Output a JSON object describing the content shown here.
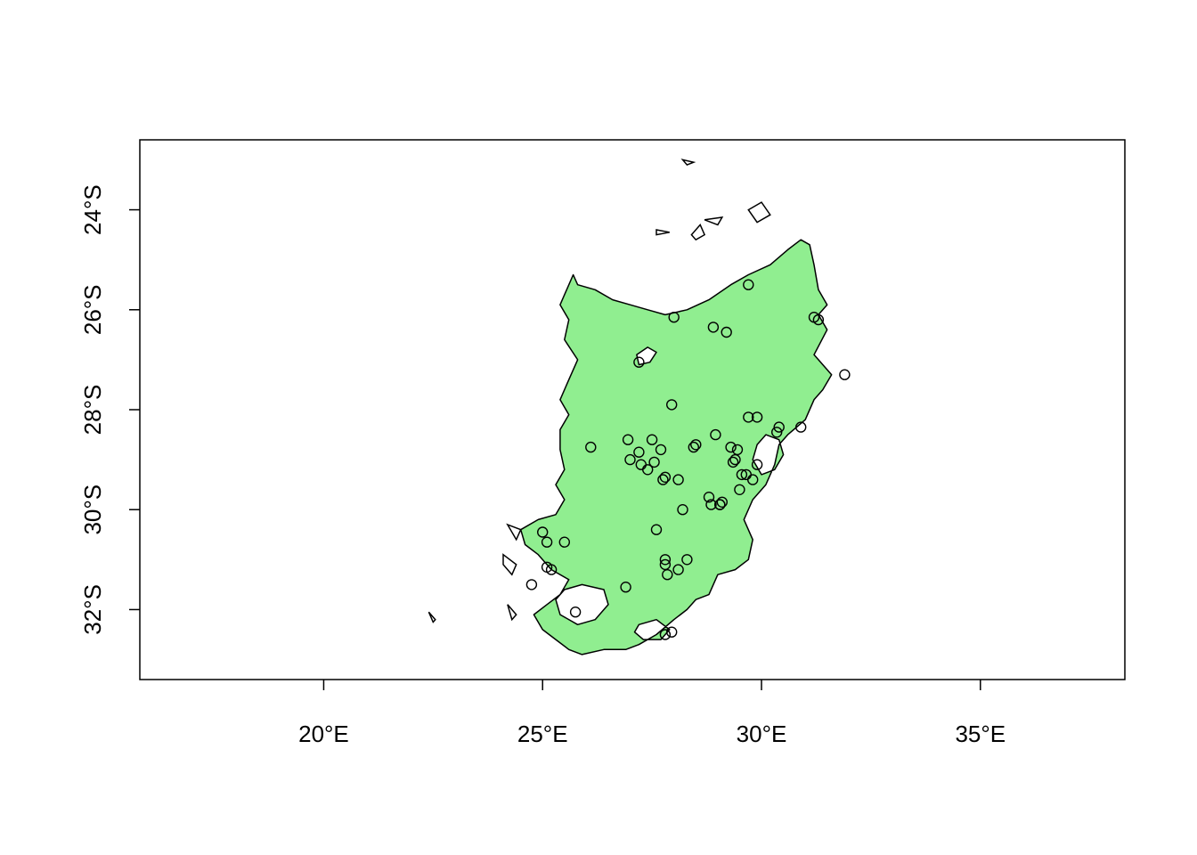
{
  "colors": {
    "background": "#ffffff",
    "region_fill": "#90ee90",
    "region_outline": "#000000",
    "point_stroke": "#000000"
  },
  "map": {
    "xlim": [
      15.8,
      38.3
    ],
    "ylim": [
      -33.4,
      -22.6
    ],
    "x_ticks": [
      {
        "value": 20,
        "label": "20°E"
      },
      {
        "value": 25,
        "label": "25°E"
      },
      {
        "value": 30,
        "label": "30°E"
      },
      {
        "value": 35,
        "label": "35°E"
      }
    ],
    "y_ticks": [
      {
        "value": -24,
        "label": "24°S"
      },
      {
        "value": -26,
        "label": "26°S"
      },
      {
        "value": -28,
        "label": "28°S"
      },
      {
        "value": -30,
        "label": "30°S"
      },
      {
        "value": -32,
        "label": "32°S"
      }
    ],
    "region": {
      "name": "",
      "outline": [
        [
          25.7,
          -25.3
        ],
        [
          25.8,
          -25.5
        ],
        [
          26.2,
          -25.6
        ],
        [
          26.6,
          -25.8
        ],
        [
          27.0,
          -25.9
        ],
        [
          27.4,
          -26.0
        ],
        [
          27.8,
          -26.1
        ],
        [
          28.3,
          -26.0
        ],
        [
          28.8,
          -25.8
        ],
        [
          29.3,
          -25.5
        ],
        [
          29.7,
          -25.3
        ],
        [
          30.2,
          -25.1
        ],
        [
          30.6,
          -24.8
        ],
        [
          30.9,
          -24.6
        ],
        [
          31.1,
          -24.7
        ],
        [
          31.2,
          -25.1
        ],
        [
          31.3,
          -25.6
        ],
        [
          31.5,
          -25.9
        ],
        [
          31.3,
          -26.1
        ],
        [
          31.5,
          -26.4
        ],
        [
          31.2,
          -26.9
        ],
        [
          31.6,
          -27.3
        ],
        [
          31.4,
          -27.6
        ],
        [
          31.2,
          -27.8
        ],
        [
          31.0,
          -28.2
        ],
        [
          30.6,
          -28.5
        ],
        [
          30.4,
          -28.7
        ],
        [
          30.3,
          -29.1
        ],
        [
          30.1,
          -29.5
        ],
        [
          29.8,
          -29.8
        ],
        [
          29.6,
          -30.2
        ],
        [
          29.8,
          -30.6
        ],
        [
          29.7,
          -31.0
        ],
        [
          29.4,
          -31.2
        ],
        [
          29.0,
          -31.3
        ],
        [
          28.8,
          -31.7
        ],
        [
          28.5,
          -31.8
        ],
        [
          28.3,
          -32.0
        ],
        [
          28.0,
          -32.2
        ],
        [
          27.6,
          -32.5
        ],
        [
          27.2,
          -32.7
        ],
        [
          26.9,
          -32.8
        ],
        [
          26.4,
          -32.8
        ],
        [
          25.9,
          -32.9
        ],
        [
          25.6,
          -32.8
        ],
        [
          25.3,
          -32.6
        ],
        [
          25.0,
          -32.4
        ],
        [
          24.8,
          -32.1
        ],
        [
          25.1,
          -31.9
        ],
        [
          25.4,
          -31.7
        ],
        [
          25.6,
          -31.4
        ],
        [
          25.2,
          -31.2
        ],
        [
          24.9,
          -30.9
        ],
        [
          24.6,
          -30.7
        ],
        [
          24.5,
          -30.4
        ],
        [
          24.9,
          -30.2
        ],
        [
          25.3,
          -30.1
        ],
        [
          25.5,
          -29.8
        ],
        [
          25.3,
          -29.5
        ],
        [
          25.5,
          -29.2
        ],
        [
          25.4,
          -28.8
        ],
        [
          25.4,
          -28.4
        ],
        [
          25.6,
          -28.1
        ],
        [
          25.4,
          -27.8
        ],
        [
          25.6,
          -27.4
        ],
        [
          25.8,
          -27.0
        ],
        [
          25.5,
          -26.6
        ],
        [
          25.6,
          -26.2
        ],
        [
          25.4,
          -25.9
        ],
        [
          25.7,
          -25.3
        ]
      ],
      "holes": [
        [
          [
            30.1,
            -28.5
          ],
          [
            30.4,
            -28.6
          ],
          [
            30.5,
            -28.9
          ],
          [
            30.3,
            -29.2
          ],
          [
            30.0,
            -29.3
          ],
          [
            29.8,
            -29.0
          ],
          [
            29.9,
            -28.7
          ],
          [
            30.1,
            -28.5
          ]
        ],
        [
          [
            25.5,
            -31.6
          ],
          [
            25.9,
            -31.5
          ],
          [
            26.4,
            -31.6
          ],
          [
            26.5,
            -31.9
          ],
          [
            26.2,
            -32.2
          ],
          [
            25.8,
            -32.3
          ],
          [
            25.4,
            -32.1
          ],
          [
            25.3,
            -31.8
          ],
          [
            25.5,
            -31.6
          ]
        ],
        [
          [
            27.2,
            -32.3
          ],
          [
            27.6,
            -32.2
          ],
          [
            27.9,
            -32.4
          ],
          [
            27.7,
            -32.6
          ],
          [
            27.3,
            -32.6
          ],
          [
            27.1,
            -32.45
          ],
          [
            27.2,
            -32.3
          ]
        ],
        [
          [
            27.15,
            -26.9
          ],
          [
            27.4,
            -26.75
          ],
          [
            27.6,
            -26.85
          ],
          [
            27.45,
            -27.05
          ],
          [
            27.2,
            -27.1
          ],
          [
            27.15,
            -26.9
          ]
        ]
      ],
      "islands": [
        [
          [
            28.2,
            -23.0
          ],
          [
            28.45,
            -23.05
          ],
          [
            28.3,
            -23.1
          ],
          [
            28.2,
            -23.0
          ]
        ],
        [
          [
            29.7,
            -24.0
          ],
          [
            30.0,
            -23.85
          ],
          [
            30.2,
            -24.1
          ],
          [
            29.9,
            -24.25
          ],
          [
            29.7,
            -24.0
          ]
        ],
        [
          [
            28.7,
            -24.2
          ],
          [
            29.1,
            -24.15
          ],
          [
            29.0,
            -24.3
          ],
          [
            28.7,
            -24.2
          ]
        ],
        [
          [
            27.6,
            -24.4
          ],
          [
            27.9,
            -24.45
          ],
          [
            27.6,
            -24.5
          ],
          [
            27.6,
            -24.4
          ]
        ],
        [
          [
            28.4,
            -24.5
          ],
          [
            28.6,
            -24.3
          ],
          [
            28.7,
            -24.5
          ],
          [
            28.5,
            -24.6
          ],
          [
            28.4,
            -24.5
          ]
        ],
        [
          [
            22.4,
            -32.05
          ],
          [
            22.55,
            -32.2
          ],
          [
            22.5,
            -32.25
          ],
          [
            22.4,
            -32.05
          ]
        ],
        [
          [
            24.2,
            -30.3
          ],
          [
            24.5,
            -30.4
          ],
          [
            24.4,
            -30.6
          ],
          [
            24.2,
            -30.3
          ]
        ],
        [
          [
            24.1,
            -30.9
          ],
          [
            24.4,
            -31.1
          ],
          [
            24.3,
            -31.3
          ],
          [
            24.1,
            -31.1
          ],
          [
            24.1,
            -30.9
          ]
        ],
        [
          [
            24.2,
            -31.9
          ],
          [
            24.4,
            -32.1
          ],
          [
            24.3,
            -32.2
          ],
          [
            24.2,
            -31.9
          ]
        ]
      ]
    },
    "points": [
      [
        26.1,
        -28.75
      ],
      [
        26.9,
        -31.55
      ],
      [
        26.95,
        -28.6
      ],
      [
        27.0,
        -29.0
      ],
      [
        27.2,
        -28.85
      ],
      [
        27.25,
        -29.1
      ],
      [
        27.4,
        -29.2
      ],
      [
        27.5,
        -28.6
      ],
      [
        27.55,
        -29.05
      ],
      [
        27.6,
        -30.4
      ],
      [
        27.7,
        -28.8
      ],
      [
        27.75,
        -29.4
      ],
      [
        27.8,
        -29.35
      ],
      [
        27.8,
        -31.0
      ],
      [
        27.8,
        -31.1
      ],
      [
        27.85,
        -31.3
      ],
      [
        27.95,
        -27.9
      ],
      [
        28.1,
        -29.4
      ],
      [
        28.1,
        -31.2
      ],
      [
        28.2,
        -30.0
      ],
      [
        28.3,
        -31.0
      ],
      [
        28.45,
        -28.75
      ],
      [
        28.5,
        -28.7
      ],
      [
        28.8,
        -29.75
      ],
      [
        28.85,
        -29.9
      ],
      [
        28.9,
        -26.35
      ],
      [
        28.95,
        -28.5
      ],
      [
        29.05,
        -29.9
      ],
      [
        29.1,
        -29.85
      ],
      [
        29.2,
        -26.45
      ],
      [
        29.3,
        -28.75
      ],
      [
        29.35,
        -29.05
      ],
      [
        29.4,
        -29.0
      ],
      [
        29.45,
        -28.8
      ],
      [
        29.5,
        -29.6
      ],
      [
        29.55,
        -29.3
      ],
      [
        29.65,
        -29.3
      ],
      [
        29.7,
        -28.15
      ],
      [
        29.7,
        -25.5
      ],
      [
        29.8,
        -29.4
      ],
      [
        29.9,
        -28.15
      ],
      [
        29.9,
        -29.1
      ],
      [
        30.35,
        -28.45
      ],
      [
        30.4,
        -28.35
      ],
      [
        30.9,
        -28.35
      ],
      [
        31.2,
        -26.15
      ],
      [
        31.3,
        -26.2
      ],
      [
        31.9,
        -27.3
      ],
      [
        24.75,
        -31.5
      ],
      [
        25.0,
        -30.45
      ],
      [
        25.1,
        -30.65
      ],
      [
        25.1,
        -31.15
      ],
      [
        25.5,
        -30.65
      ],
      [
        25.75,
        -32.05
      ],
      [
        27.95,
        -32.45
      ],
      [
        27.8,
        -32.5
      ],
      [
        27.2,
        -27.05
      ],
      [
        28.0,
        -26.15
      ],
      [
        25.2,
        -31.2
      ],
      [
        29.05,
        -29.9
      ]
    ]
  }
}
